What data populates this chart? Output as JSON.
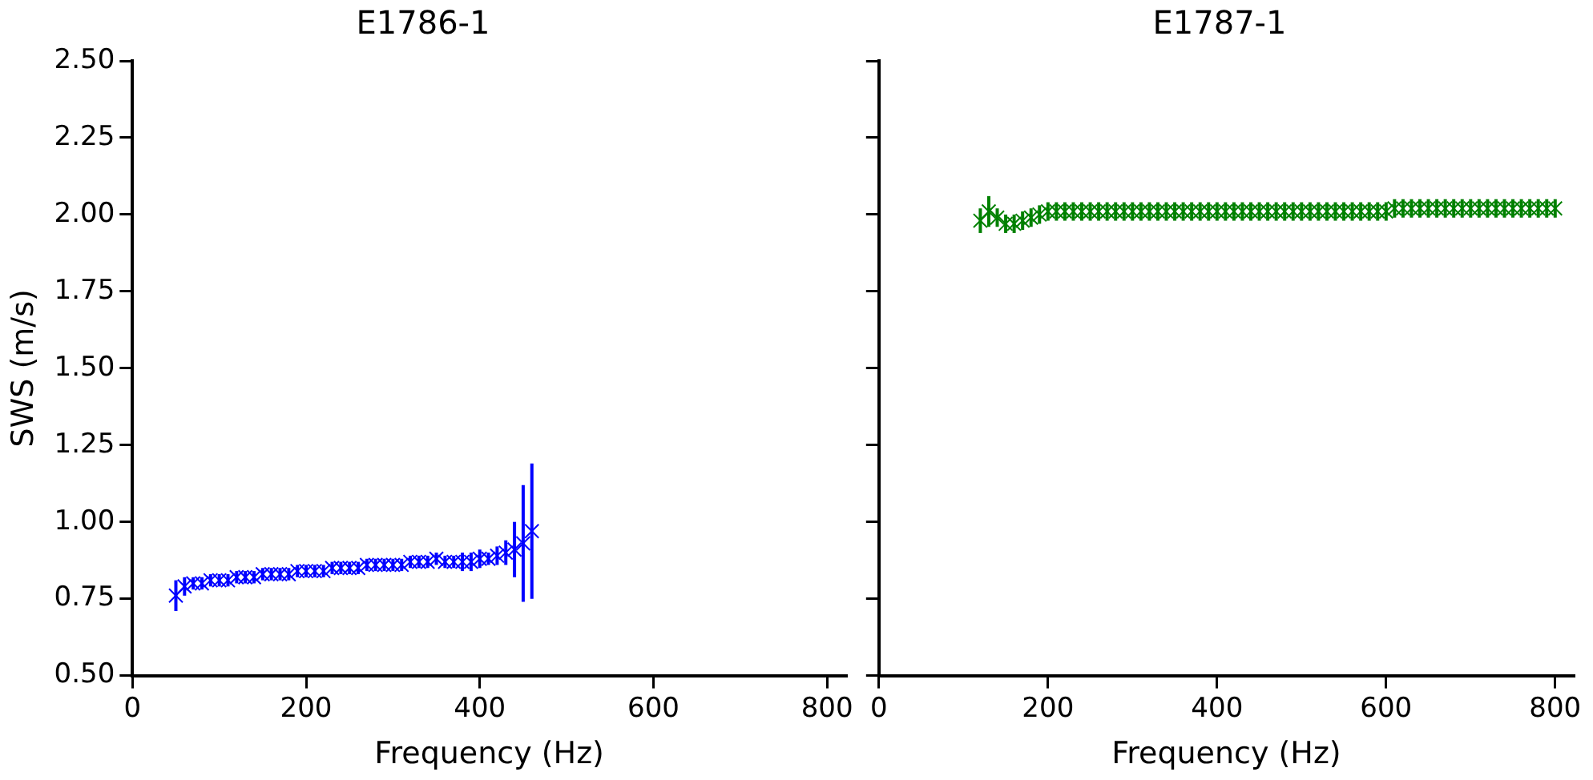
{
  "chart_data": [
    {
      "type": "scatter",
      "title": "E1786-1",
      "xlabel": "Frequency (Hz)",
      "ylabel": "SWS (m/s)",
      "color": "#0000ff",
      "marker": "cross",
      "grid": false,
      "xlim": [
        0,
        822
      ],
      "xticks": [
        0,
        200,
        400,
        600,
        800
      ],
      "ylim": [
        0.5,
        2.5
      ],
      "yticks": [
        {
          "value": 0.5,
          "label": "0.50"
        },
        {
          "value": 0.75,
          "label": "0.75"
        },
        {
          "value": 1,
          "label": "1.00"
        },
        {
          "value": 1.25,
          "label": "1.25"
        },
        {
          "value": 1.5,
          "label": "1.50"
        },
        {
          "value": 1.75,
          "label": "1.75"
        },
        {
          "value": 2,
          "label": "2.00"
        },
        {
          "value": 2.25,
          "label": "2.25"
        },
        {
          "value": 2.5,
          "label": "2.50"
        }
      ],
      "x": [
        50,
        60,
        70,
        80,
        90,
        100,
        110,
        120,
        130,
        140,
        150,
        160,
        170,
        180,
        190,
        200,
        210,
        220,
        230,
        240,
        250,
        260,
        270,
        280,
        290,
        300,
        310,
        320,
        330,
        340,
        350,
        360,
        370,
        380,
        390,
        400,
        410,
        420,
        430,
        440,
        450,
        460
      ],
      "values": [
        0.76,
        0.79,
        0.8,
        0.8,
        0.81,
        0.81,
        0.81,
        0.82,
        0.82,
        0.82,
        0.83,
        0.83,
        0.83,
        0.83,
        0.84,
        0.84,
        0.84,
        0.84,
        0.85,
        0.85,
        0.85,
        0.85,
        0.86,
        0.86,
        0.86,
        0.86,
        0.86,
        0.87,
        0.87,
        0.87,
        0.88,
        0.87,
        0.87,
        0.87,
        0.87,
        0.88,
        0.88,
        0.89,
        0.9,
        0.91,
        0.93,
        0.97
      ],
      "errors": [
        0.05,
        0.03,
        0.02,
        0.02,
        0.02,
        0.02,
        0.02,
        0.02,
        0.02,
        0.02,
        0.02,
        0.02,
        0.02,
        0.02,
        0.02,
        0.02,
        0.02,
        0.02,
        0.02,
        0.02,
        0.02,
        0.02,
        0.02,
        0.02,
        0.02,
        0.02,
        0.02,
        0.02,
        0.02,
        0.02,
        0.02,
        0.02,
        0.02,
        0.03,
        0.03,
        0.03,
        0.02,
        0.03,
        0.04,
        0.09,
        0.19,
        0.22
      ]
    },
    {
      "type": "scatter",
      "title": "E1787-1",
      "xlabel": "Frequency (Hz)",
      "color": "#008000",
      "marker": "cross",
      "grid": false,
      "tick_labels": "x",
      "xlim": [
        0,
        822
      ],
      "xticks": [
        0,
        200,
        400,
        600,
        800
      ],
      "ylim": [
        0.5,
        2.5
      ],
      "yticks": [
        {
          "value": 0.5,
          "label": null
        },
        {
          "value": 0.75,
          "label": null
        },
        {
          "value": 1,
          "label": null
        },
        {
          "value": 1.25,
          "label": null
        },
        {
          "value": 1.5,
          "label": null
        },
        {
          "value": 1.75,
          "label": null
        },
        {
          "value": 2,
          "label": null
        },
        {
          "value": 2.25,
          "label": null
        },
        {
          "value": 2.5,
          "label": null
        }
      ],
      "x": [
        120,
        130,
        140,
        150,
        160,
        170,
        180,
        190,
        200,
        210,
        220,
        230,
        240,
        250,
        260,
        270,
        280,
        290,
        300,
        310,
        320,
        330,
        340,
        350,
        360,
        370,
        380,
        390,
        400,
        410,
        420,
        430,
        440,
        450,
        460,
        470,
        480,
        490,
        500,
        510,
        520,
        530,
        540,
        550,
        560,
        570,
        580,
        590,
        600,
        610,
        620,
        630,
        640,
        650,
        660,
        670,
        680,
        690,
        700,
        710,
        720,
        730,
        740,
        750,
        760,
        770,
        780,
        790,
        800
      ],
      "values": [
        1.98,
        2.01,
        1.99,
        1.97,
        1.97,
        1.98,
        1.99,
        2.0,
        2.01,
        2.01,
        2.01,
        2.01,
        2.01,
        2.01,
        2.01,
        2.01,
        2.01,
        2.01,
        2.01,
        2.01,
        2.01,
        2.01,
        2.01,
        2.01,
        2.01,
        2.01,
        2.01,
        2.01,
        2.01,
        2.01,
        2.01,
        2.01,
        2.01,
        2.01,
        2.01,
        2.01,
        2.01,
        2.01,
        2.01,
        2.01,
        2.01,
        2.01,
        2.01,
        2.01,
        2.01,
        2.01,
        2.01,
        2.01,
        2.01,
        2.02,
        2.02,
        2.02,
        2.02,
        2.02,
        2.02,
        2.02,
        2.02,
        2.02,
        2.02,
        2.02,
        2.02,
        2.02,
        2.02,
        2.02,
        2.02,
        2.02,
        2.02,
        2.02,
        2.02
      ],
      "errors": [
        0.04,
        0.05,
        0.03,
        0.03,
        0.03,
        0.03,
        0.03,
        0.03,
        0.03,
        0.03,
        0.03,
        0.03,
        0.03,
        0.03,
        0.03,
        0.03,
        0.03,
        0.03,
        0.03,
        0.03,
        0.03,
        0.03,
        0.03,
        0.03,
        0.03,
        0.03,
        0.03,
        0.03,
        0.03,
        0.03,
        0.03,
        0.03,
        0.03,
        0.03,
        0.03,
        0.03,
        0.03,
        0.03,
        0.03,
        0.03,
        0.03,
        0.03,
        0.03,
        0.03,
        0.03,
        0.03,
        0.03,
        0.03,
        0.03,
        0.03,
        0.03,
        0.03,
        0.03,
        0.03,
        0.03,
        0.03,
        0.03,
        0.03,
        0.03,
        0.03,
        0.03,
        0.03,
        0.03,
        0.03,
        0.03,
        0.03,
        0.03,
        0.03,
        0.03
      ]
    }
  ]
}
